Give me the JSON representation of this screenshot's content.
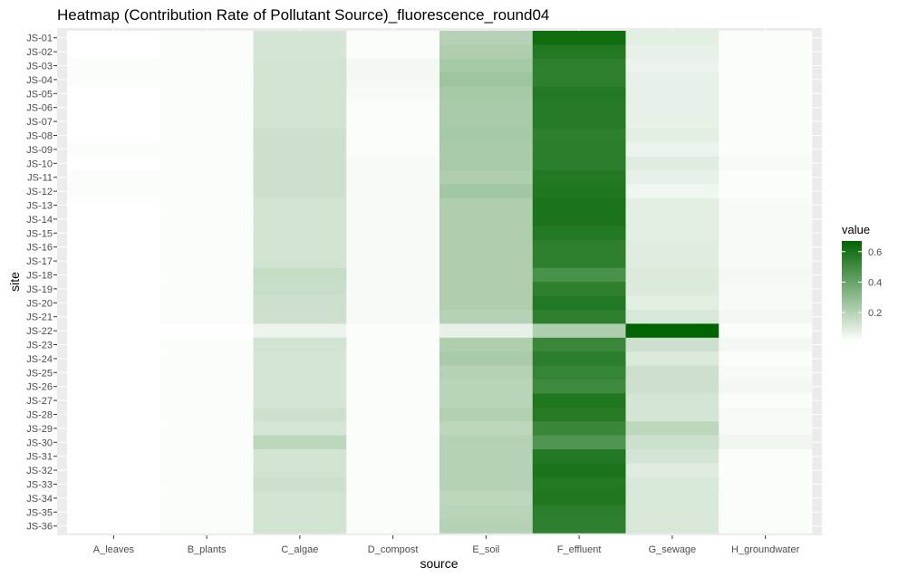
{
  "chart_data": {
    "type": "heatmap",
    "title": "Heatmap (Contribution Rate of Pollutant Source)_fluorescence_round04",
    "xlabel": "source",
    "ylabel": "site",
    "x_categories": [
      "A_leaves",
      "B_plants",
      "C_algae",
      "D_compost",
      "E_soil",
      "F_effluent",
      "G_sewage",
      "H_groundwater"
    ],
    "y_categories": [
      "JS-01",
      "JS-02",
      "JS-03",
      "JS-04",
      "JS-05",
      "JS-06",
      "JS-07",
      "JS-08",
      "JS-09",
      "JS-10",
      "JS-11",
      "JS-12",
      "JS-13",
      "JS-14",
      "JS-15",
      "JS-16",
      "JS-17",
      "JS-18",
      "JS-19",
      "JS-20",
      "JS-21",
      "JS-22",
      "JS-23",
      "JS-24",
      "JS-25",
      "JS-26",
      "JS-27",
      "JS-28",
      "JS-29",
      "JS-30",
      "JS-31",
      "JS-32",
      "JS-33",
      "JS-34",
      "JS-35",
      "JS-36"
    ],
    "values": [
      [
        0.01,
        0.02,
        0.12,
        0.02,
        0.2,
        0.63,
        0.08,
        0.02
      ],
      [
        0.01,
        0.02,
        0.12,
        0.02,
        0.22,
        0.58,
        0.07,
        0.02
      ],
      [
        0.02,
        0.02,
        0.13,
        0.04,
        0.24,
        0.55,
        0.06,
        0.02
      ],
      [
        0.02,
        0.02,
        0.13,
        0.04,
        0.26,
        0.55,
        0.07,
        0.02
      ],
      [
        0.01,
        0.02,
        0.13,
        0.03,
        0.24,
        0.58,
        0.07,
        0.02
      ],
      [
        0.01,
        0.02,
        0.13,
        0.02,
        0.23,
        0.57,
        0.07,
        0.02
      ],
      [
        0.01,
        0.02,
        0.13,
        0.02,
        0.23,
        0.57,
        0.07,
        0.02
      ],
      [
        0.01,
        0.02,
        0.14,
        0.02,
        0.24,
        0.55,
        0.08,
        0.02
      ],
      [
        0.02,
        0.02,
        0.14,
        0.02,
        0.23,
        0.56,
        0.06,
        0.02
      ],
      [
        0.01,
        0.02,
        0.14,
        0.03,
        0.23,
        0.56,
        0.09,
        0.03
      ],
      [
        0.02,
        0.02,
        0.14,
        0.03,
        0.22,
        0.58,
        0.07,
        0.02
      ],
      [
        0.02,
        0.02,
        0.14,
        0.03,
        0.25,
        0.59,
        0.05,
        0.02
      ],
      [
        0.01,
        0.02,
        0.13,
        0.03,
        0.22,
        0.6,
        0.08,
        0.03
      ],
      [
        0.01,
        0.02,
        0.13,
        0.03,
        0.22,
        0.6,
        0.08,
        0.03
      ],
      [
        0.01,
        0.02,
        0.13,
        0.03,
        0.22,
        0.58,
        0.08,
        0.03
      ],
      [
        0.01,
        0.02,
        0.13,
        0.03,
        0.22,
        0.55,
        0.09,
        0.03
      ],
      [
        0.01,
        0.02,
        0.13,
        0.03,
        0.22,
        0.55,
        0.09,
        0.03
      ],
      [
        0.01,
        0.02,
        0.16,
        0.03,
        0.22,
        0.48,
        0.1,
        0.04
      ],
      [
        0.01,
        0.02,
        0.15,
        0.03,
        0.22,
        0.55,
        0.1,
        0.03
      ],
      [
        0.01,
        0.02,
        0.14,
        0.03,
        0.22,
        0.58,
        0.08,
        0.03
      ],
      [
        0.01,
        0.02,
        0.14,
        0.03,
        0.2,
        0.55,
        0.11,
        0.04
      ],
      [
        0.01,
        0.01,
        0.06,
        0.02,
        0.07,
        0.22,
        0.67,
        0.02
      ],
      [
        0.01,
        0.02,
        0.13,
        0.02,
        0.22,
        0.52,
        0.14,
        0.04
      ],
      [
        0.01,
        0.02,
        0.12,
        0.02,
        0.23,
        0.56,
        0.1,
        0.02
      ],
      [
        0.01,
        0.02,
        0.12,
        0.02,
        0.2,
        0.53,
        0.14,
        0.03
      ],
      [
        0.01,
        0.02,
        0.12,
        0.02,
        0.19,
        0.51,
        0.14,
        0.04
      ],
      [
        0.01,
        0.02,
        0.12,
        0.02,
        0.19,
        0.59,
        0.12,
        0.02
      ],
      [
        0.01,
        0.02,
        0.14,
        0.02,
        0.21,
        0.57,
        0.12,
        0.03
      ],
      [
        0.01,
        0.02,
        0.12,
        0.02,
        0.18,
        0.52,
        0.18,
        0.03
      ],
      [
        0.01,
        0.02,
        0.18,
        0.02,
        0.2,
        0.46,
        0.14,
        0.05
      ],
      [
        0.01,
        0.02,
        0.13,
        0.02,
        0.2,
        0.58,
        0.12,
        0.02
      ],
      [
        0.01,
        0.02,
        0.13,
        0.02,
        0.2,
        0.6,
        0.09,
        0.02
      ],
      [
        0.01,
        0.02,
        0.14,
        0.02,
        0.2,
        0.58,
        0.11,
        0.02
      ],
      [
        0.01,
        0.02,
        0.13,
        0.02,
        0.18,
        0.59,
        0.11,
        0.02
      ],
      [
        0.01,
        0.02,
        0.13,
        0.02,
        0.19,
        0.56,
        0.11,
        0.02
      ],
      [
        0.01,
        0.02,
        0.13,
        0.02,
        0.2,
        0.55,
        0.11,
        0.02
      ]
    ],
    "color_low": "#ffffff",
    "color_high": "#006400",
    "value_range": [
      0.01,
      0.67
    ],
    "legend": {
      "title": "value",
      "placement": "right",
      "ticks": [
        0.2,
        0.4,
        0.6
      ],
      "tick_labels": [
        "0.2",
        "0.4",
        "0.6"
      ]
    },
    "panel_background": "#ebebeb",
    "grid": true
  }
}
